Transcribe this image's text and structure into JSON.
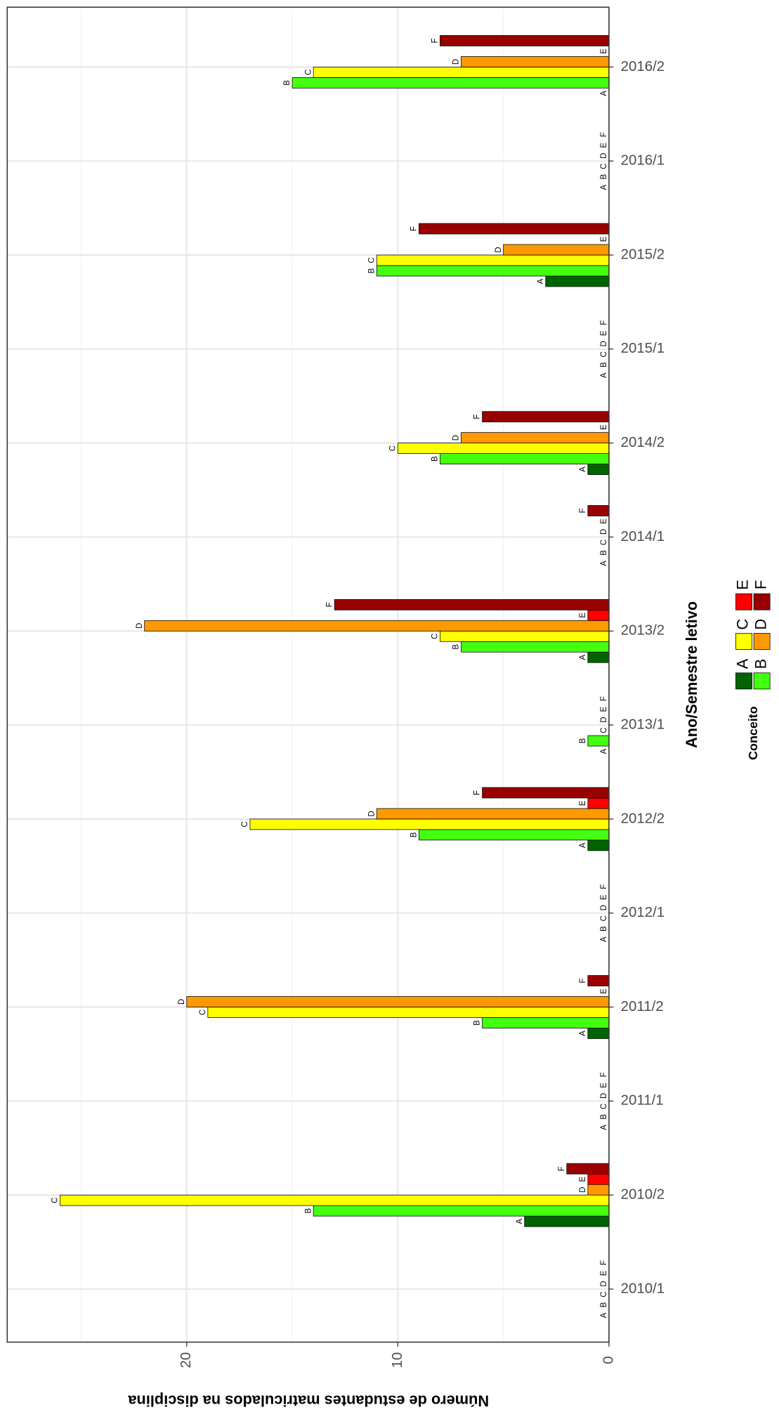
{
  "chart_data": {
    "type": "bar",
    "orientation": "horizontal",
    "x_axis_title": "Ano/Semestre letivo",
    "y_axis_title": "Número de estudantes matriculados na disciplina",
    "legend_title": "Conceito",
    "categories": [
      "2010/1",
      "2010/2",
      "2011/1",
      "2011/2",
      "2012/1",
      "2012/2",
      "2013/1",
      "2013/2",
      "2014/1",
      "2014/2",
      "2015/1",
      "2015/2",
      "2016/1",
      "2016/2"
    ],
    "series": [
      {
        "name": "A",
        "color": "#006400",
        "values": [
          0,
          4,
          0,
          1,
          0,
          1,
          0,
          1,
          0,
          1,
          0,
          3,
          0,
          0
        ]
      },
      {
        "name": "B",
        "color": "#44ff11",
        "values": [
          0,
          14,
          0,
          6,
          0,
          9,
          1,
          7,
          0,
          8,
          0,
          11,
          0,
          15
        ]
      },
      {
        "name": "C",
        "color": "#ffff00",
        "values": [
          0,
          26,
          0,
          19,
          0,
          17,
          0,
          8,
          0,
          10,
          0,
          11,
          0,
          14
        ]
      },
      {
        "name": "D",
        "color": "#ff9900",
        "values": [
          0,
          1,
          0,
          20,
          0,
          11,
          0,
          22,
          0,
          7,
          0,
          5,
          0,
          7
        ]
      },
      {
        "name": "E",
        "color": "#ff0000",
        "values": [
          0,
          1,
          0,
          0,
          0,
          1,
          0,
          1,
          0,
          0,
          0,
          0,
          0,
          0
        ]
      },
      {
        "name": "F",
        "color": "#990000",
        "values": [
          0,
          2,
          0,
          1,
          0,
          6,
          0,
          13,
          1,
          6,
          0,
          9,
          0,
          8
        ]
      }
    ],
    "ylim": [
      0,
      28.5
    ],
    "yticks": [
      0,
      10,
      20
    ],
    "minor_ticks": [
      5,
      15,
      25
    ],
    "grid": true
  }
}
